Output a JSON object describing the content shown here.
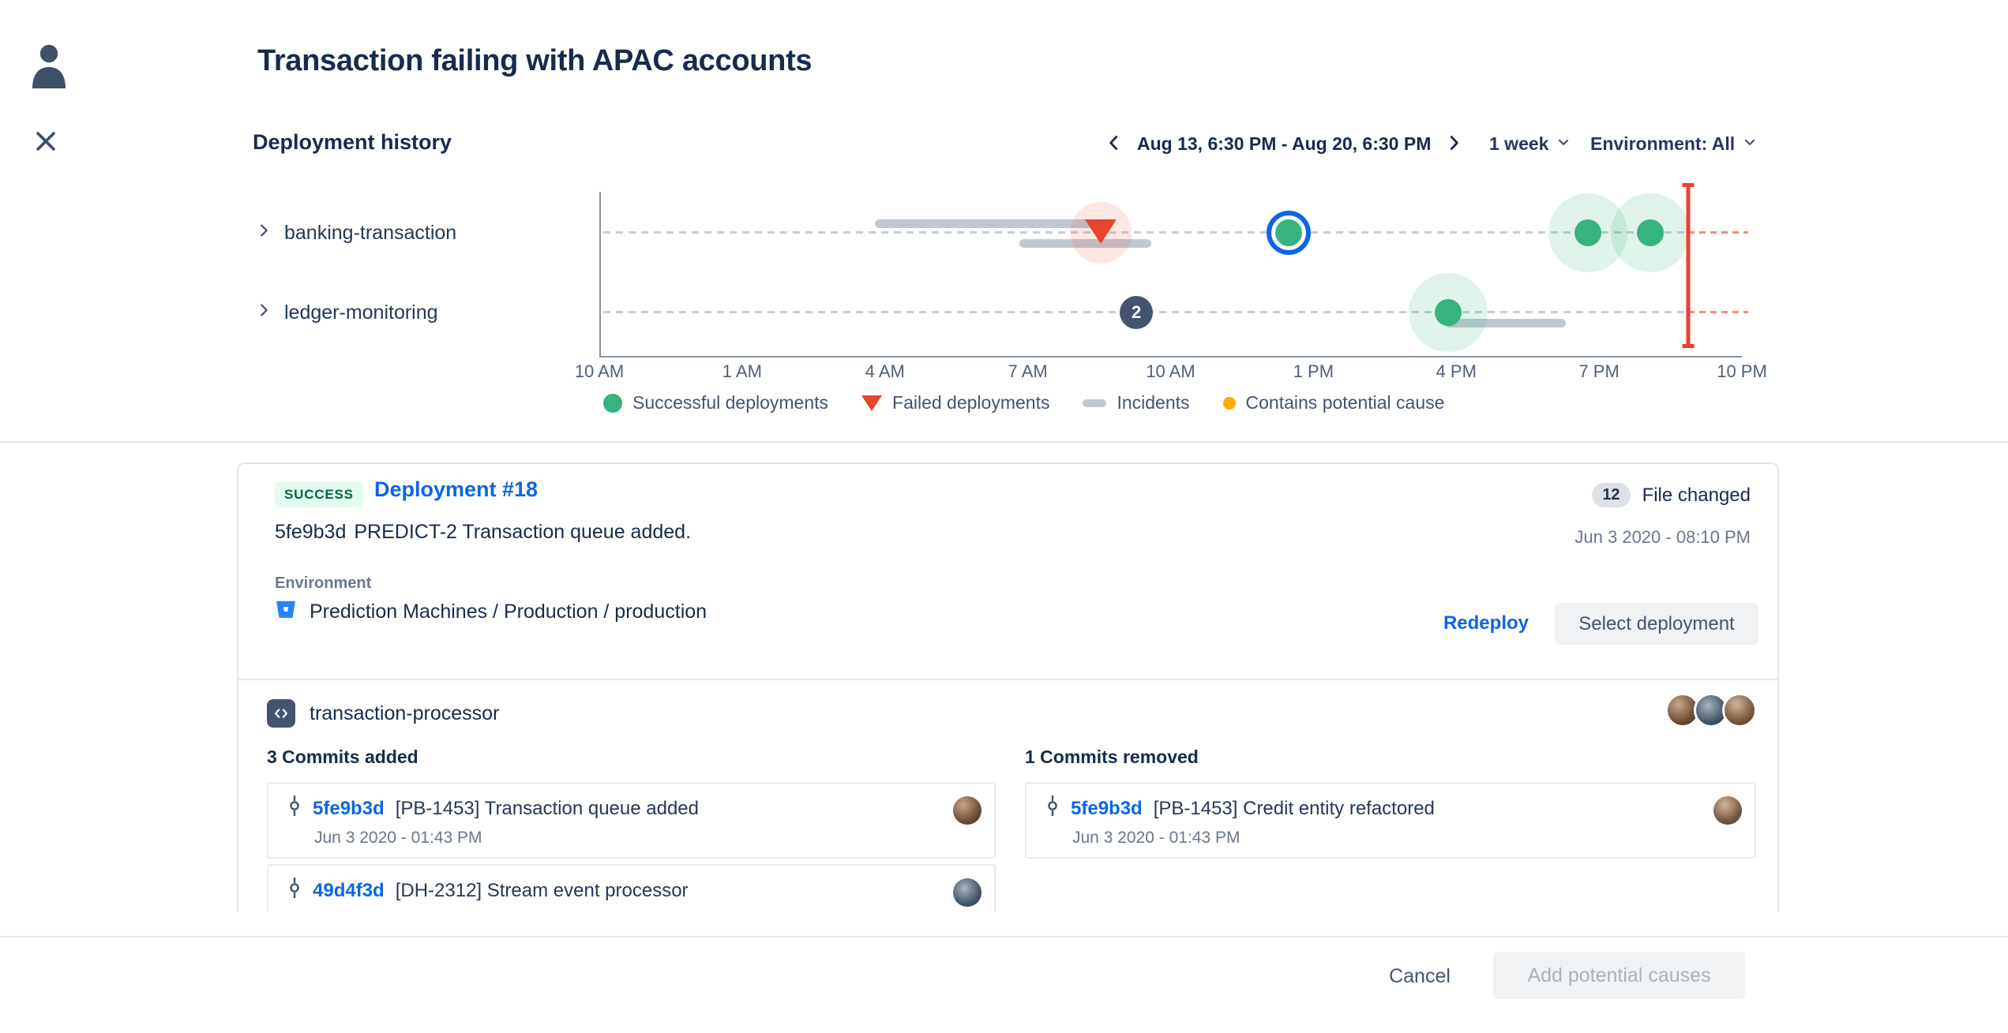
{
  "colors": {
    "accent": "#0C66E4",
    "success": "#36B37E",
    "failed": "#E8442E",
    "incident": "#C2C8D2",
    "cause": "#FFAB00",
    "marker": "#F03E2F"
  },
  "header": {
    "title": "Transaction failing with APAC accounts"
  },
  "deployment_history": {
    "title": "Deployment history",
    "date_range": "Aug 13, 6:30 PM - Aug 20, 6:30 PM",
    "period": "1 week",
    "environment": "Environment: All",
    "services": [
      {
        "label": "banking-transaction"
      },
      {
        "label": "ledger-monitoring"
      }
    ],
    "axis_ticks": [
      "10 AM",
      "1 AM",
      "4 AM",
      "7 AM",
      "10 AM",
      "1 PM",
      "4 PM",
      "7 PM",
      "10 PM"
    ],
    "legend": [
      {
        "label": "Successful deployments"
      },
      {
        "label": "Failed deployments"
      },
      {
        "label": "Incidents"
      },
      {
        "label": "Contains potential cause"
      }
    ],
    "timeline": {
      "marker_pct": 95.3,
      "rows": [
        {
          "service": "banking-transaction",
          "incidents": [
            {
              "start_pct": 24.1,
              "end_pct": 44.0,
              "lane": "above"
            },
            {
              "start_pct": 36.8,
              "end_pct": 48.3,
              "lane": "below"
            }
          ],
          "deployments": [
            {
              "type": "failed",
              "pct": 43.9,
              "halo": true
            },
            {
              "type": "success",
              "pct": 60.3,
              "selected": true
            },
            {
              "type": "success",
              "pct": 86.5,
              "halo": true
            },
            {
              "type": "success",
              "pct": 92.0,
              "halo": true
            }
          ]
        },
        {
          "service": "ledger-monitoring",
          "group_badge": {
            "pct": 47.0,
            "count": "2"
          },
          "incidents": [
            {
              "start_pct": 74.0,
              "end_pct": 84.6,
              "lane": "below"
            }
          ],
          "deployments": [
            {
              "type": "success",
              "pct": 74.3,
              "halo": true
            }
          ]
        }
      ]
    }
  },
  "deployment": {
    "status": "SUCCESS",
    "name": "Deployment #18",
    "commit_hash": "5fe9b3d",
    "commit_message": "PREDICT-2 Transaction queue added.",
    "files_changed_count": "12",
    "files_changed_label": "File changed",
    "date": "Jun 3 2020 - 08:10 PM",
    "environment_label": "Environment",
    "environment_path": "Prediction Machines / Production / production",
    "redeploy": "Redeploy",
    "select_deployment": "Select deployment"
  },
  "repository": {
    "name": "transaction-processor",
    "commits_added_header": "3 Commits added",
    "commits_removed_header": "1 Commits removed",
    "commits_added": [
      {
        "hash": "5fe9b3d",
        "message": "[PB-1453] Transaction queue added",
        "date": "Jun 3 2020 - 01:43 PM"
      },
      {
        "hash": "49d4f3d",
        "message": "[DH-2312] Stream event processor"
      }
    ],
    "commits_removed": [
      {
        "hash": "5fe9b3d",
        "message": "[PB-1453] Credit entity refactored",
        "date": "Jun 3 2020 - 01:43 PM"
      }
    ]
  },
  "footer": {
    "cancel": "Cancel",
    "add_potential_causes": "Add potential causes"
  }
}
